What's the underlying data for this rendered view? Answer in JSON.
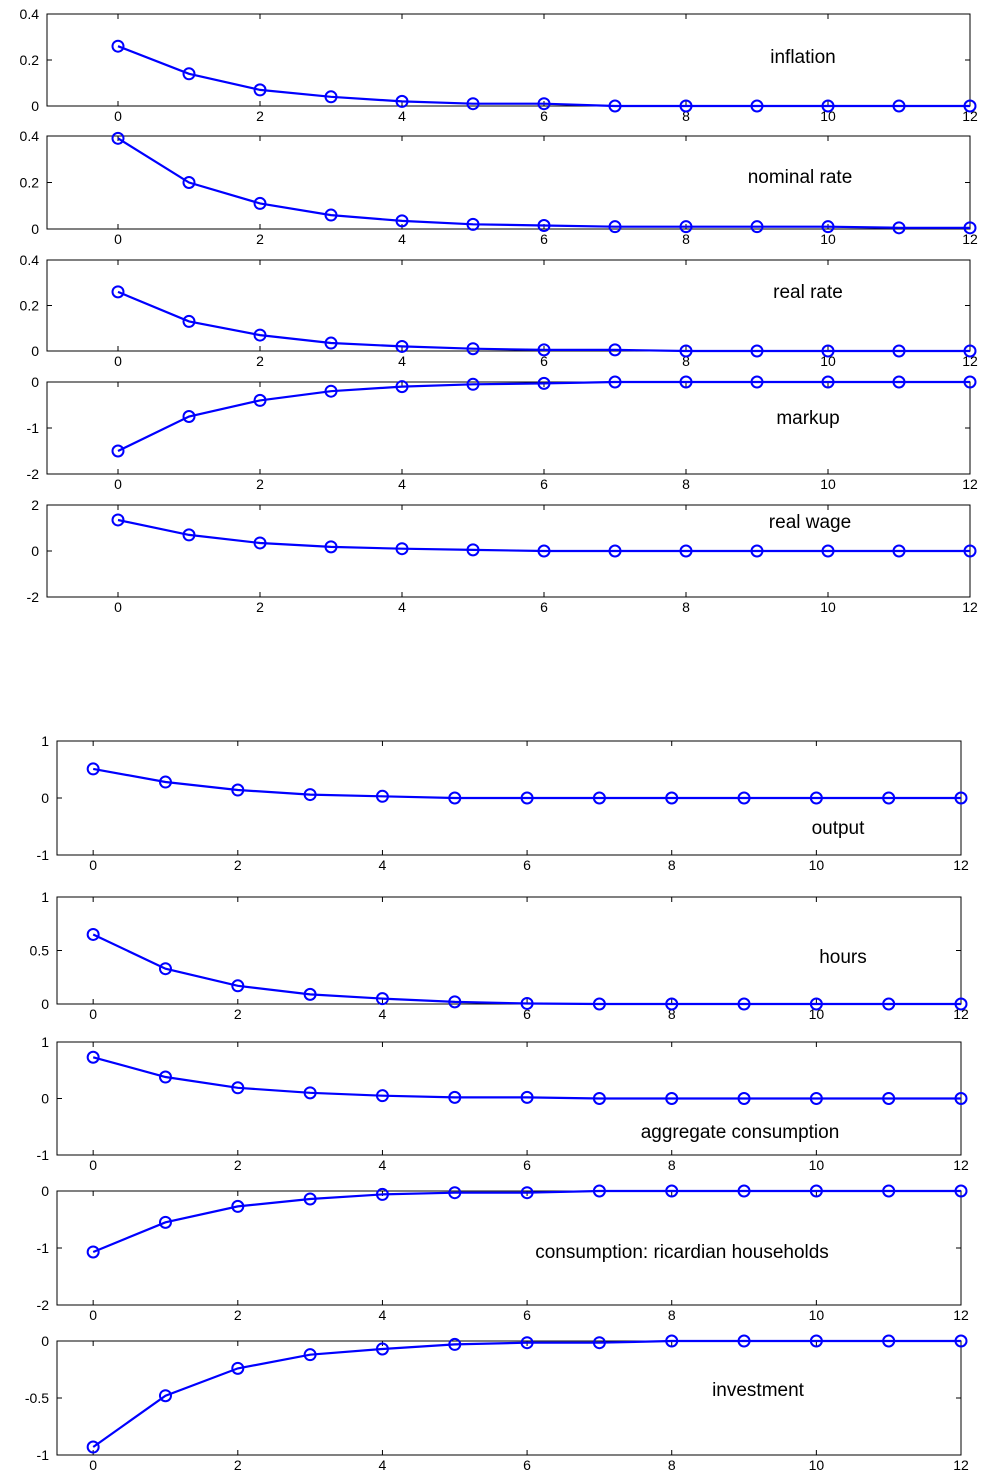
{
  "chart_data": [
    {
      "type": "line",
      "group": "top",
      "title": "inflation",
      "x": [
        0,
        1,
        2,
        3,
        4,
        5,
        6,
        7,
        8,
        9,
        10,
        11,
        12
      ],
      "series": [
        {
          "values": [
            0.26,
            0.14,
            0.07,
            0.04,
            0.02,
            0.01,
            0.01,
            0.0,
            0.0,
            0.0,
            0.0,
            0.0,
            0.0
          ]
        }
      ],
      "xlim": [
        -1,
        12
      ],
      "ylim": [
        0,
        0.4
      ],
      "yticks": [
        0,
        0.2,
        0.4
      ],
      "xticks": [
        0,
        2,
        4,
        6,
        8,
        10,
        12
      ],
      "color": "#0000ff",
      "marker": "circle",
      "grid": false
    },
    {
      "type": "line",
      "group": "top",
      "title": "nominal rate",
      "x": [
        0,
        1,
        2,
        3,
        4,
        5,
        6,
        7,
        8,
        9,
        10,
        11,
        12
      ],
      "series": [
        {
          "values": [
            0.39,
            0.2,
            0.11,
            0.06,
            0.035,
            0.02,
            0.015,
            0.01,
            0.01,
            0.01,
            0.01,
            0.005,
            0.005
          ]
        }
      ],
      "xlim": [
        -1,
        12
      ],
      "ylim": [
        0,
        0.4
      ],
      "yticks": [
        0,
        0.2,
        0.4
      ],
      "xticks": [
        0,
        2,
        4,
        6,
        8,
        10,
        12
      ],
      "color": "#0000ff",
      "marker": "circle",
      "grid": false
    },
    {
      "type": "line",
      "group": "top",
      "title": "real rate",
      "x": [
        0,
        1,
        2,
        3,
        4,
        5,
        6,
        7,
        8,
        9,
        10,
        11,
        12
      ],
      "series": [
        {
          "values": [
            0.26,
            0.13,
            0.07,
            0.035,
            0.02,
            0.01,
            0.005,
            0.005,
            0.0,
            0.0,
            0.0,
            0.0,
            0.0
          ]
        }
      ],
      "xlim": [
        -1,
        12
      ],
      "ylim": [
        0,
        0.4
      ],
      "yticks": [
        0,
        0.2,
        0.4
      ],
      "xticks": [
        0,
        2,
        4,
        6,
        8,
        10,
        12
      ],
      "color": "#0000ff",
      "marker": "circle",
      "grid": false
    },
    {
      "type": "line",
      "group": "top",
      "title": "markup",
      "x": [
        0,
        1,
        2,
        3,
        4,
        5,
        6,
        7,
        8,
        9,
        10,
        11,
        12
      ],
      "series": [
        {
          "values": [
            -1.5,
            -0.75,
            -0.4,
            -0.2,
            -0.1,
            -0.05,
            -0.03,
            0.0,
            0.0,
            0.0,
            0.0,
            0.0,
            0.0
          ]
        }
      ],
      "xlim": [
        -1,
        12
      ],
      "ylim": [
        -2,
        0
      ],
      "yticks": [
        -2,
        -1,
        0
      ],
      "xticks": [
        0,
        2,
        4,
        6,
        8,
        10,
        12
      ],
      "color": "#0000ff",
      "marker": "circle",
      "grid": false
    },
    {
      "type": "line",
      "group": "top",
      "title": "real wage",
      "x": [
        0,
        1,
        2,
        3,
        4,
        5,
        6,
        7,
        8,
        9,
        10,
        11,
        12
      ],
      "series": [
        {
          "values": [
            1.35,
            0.7,
            0.35,
            0.18,
            0.1,
            0.05,
            0.0,
            0.0,
            0.0,
            0.0,
            0.0,
            0.0,
            0.0
          ]
        }
      ],
      "xlim": [
        -1,
        12
      ],
      "ylim": [
        -2,
        2
      ],
      "yticks": [
        -2,
        0,
        2
      ],
      "xticks": [
        0,
        2,
        4,
        6,
        8,
        10,
        12
      ],
      "color": "#0000ff",
      "marker": "circle",
      "grid": false
    },
    {
      "type": "line",
      "group": "bottom",
      "title": "output",
      "x": [
        0,
        1,
        2,
        3,
        4,
        5,
        6,
        7,
        8,
        9,
        10,
        11,
        12
      ],
      "series": [
        {
          "values": [
            0.51,
            0.28,
            0.14,
            0.06,
            0.03,
            0.0,
            0.0,
            0.0,
            0.0,
            0.0,
            0.0,
            0.0,
            0.0
          ]
        }
      ],
      "xlim": [
        -0.5,
        12
      ],
      "ylim": [
        -1,
        1
      ],
      "yticks": [
        -1,
        0,
        1
      ],
      "xticks": [
        0,
        2,
        4,
        6,
        8,
        10,
        12
      ],
      "color": "#0000ff",
      "marker": "circle",
      "grid": false
    },
    {
      "type": "line",
      "group": "bottom",
      "title": "hours",
      "x": [
        0,
        1,
        2,
        3,
        4,
        5,
        6,
        7,
        8,
        9,
        10,
        11,
        12
      ],
      "series": [
        {
          "values": [
            0.65,
            0.33,
            0.17,
            0.09,
            0.05,
            0.02,
            0.005,
            0.0,
            0.0,
            0.0,
            0.0,
            0.0,
            0.0
          ]
        }
      ],
      "xlim": [
        -0.5,
        12
      ],
      "ylim": [
        0,
        1
      ],
      "yticks": [
        0,
        0.5,
        1
      ],
      "xticks": [
        0,
        2,
        4,
        6,
        8,
        10,
        12
      ],
      "color": "#0000ff",
      "marker": "circle",
      "grid": false
    },
    {
      "type": "line",
      "group": "bottom",
      "title": "aggregate consumption",
      "x": [
        0,
        1,
        2,
        3,
        4,
        5,
        6,
        7,
        8,
        9,
        10,
        11,
        12
      ],
      "series": [
        {
          "values": [
            0.73,
            0.38,
            0.19,
            0.1,
            0.05,
            0.02,
            0.02,
            0.0,
            0.0,
            0.0,
            0.0,
            0.0,
            0.0
          ]
        }
      ],
      "xlim": [
        -0.5,
        12
      ],
      "ylim": [
        -1,
        1
      ],
      "yticks": [
        -1,
        0,
        1
      ],
      "xticks": [
        0,
        2,
        4,
        6,
        8,
        10,
        12
      ],
      "color": "#0000ff",
      "marker": "circle",
      "grid": false
    },
    {
      "type": "line",
      "group": "bottom",
      "title": "consumption: ricardian households",
      "x": [
        0,
        1,
        2,
        3,
        4,
        5,
        6,
        7,
        8,
        9,
        10,
        11,
        12
      ],
      "series": [
        {
          "values": [
            -1.07,
            -0.55,
            -0.27,
            -0.14,
            -0.06,
            -0.03,
            -0.03,
            0.0,
            0.0,
            0.0,
            0.0,
            0.0,
            0.0
          ]
        }
      ],
      "xlim": [
        -0.5,
        12
      ],
      "ylim": [
        -2,
        0
      ],
      "yticks": [
        -2,
        -1,
        0
      ],
      "xticks": [
        0,
        2,
        4,
        6,
        8,
        10,
        12
      ],
      "color": "#0000ff",
      "marker": "circle",
      "grid": false
    },
    {
      "type": "line",
      "group": "bottom",
      "title": "investment",
      "x": [
        0,
        1,
        2,
        3,
        4,
        5,
        6,
        7,
        8,
        9,
        10,
        11,
        12
      ],
      "series": [
        {
          "values": [
            -0.93,
            -0.48,
            -0.24,
            -0.12,
            -0.07,
            -0.03,
            -0.015,
            -0.015,
            0.0,
            0.0,
            0.0,
            0.0,
            0.0
          ]
        }
      ],
      "xlim": [
        -0.5,
        12
      ],
      "ylim": [
        -1,
        0
      ],
      "yticks": [
        -1,
        -0.5,
        0
      ],
      "xticks": [
        0,
        2,
        4,
        6,
        8,
        10,
        12
      ],
      "color": "#0000ff",
      "marker": "circle",
      "grid": false
    }
  ]
}
